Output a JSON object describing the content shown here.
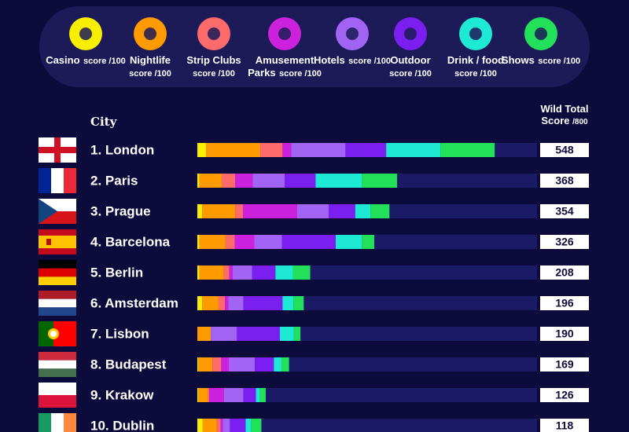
{
  "chart_data": {
    "type": "bar",
    "orientation": "horizontal",
    "stacked": true,
    "category_header": "City",
    "total_header": "Wild Total Score",
    "total_max": "/800",
    "legend_suffix": "score /100",
    "categories": [
      "1. London",
      "2. Paris",
      "3. Prague",
      "4. Barcelona",
      "5. Berlin",
      "6. Amsterdam",
      "7. Lisbon",
      "8. Budapest",
      "9. Krakow",
      "10. Dublin"
    ],
    "totals": [
      548,
      368,
      354,
      326,
      208,
      196,
      190,
      169,
      126,
      118
    ],
    "xlim": [
      0,
      626
    ],
    "series": [
      {
        "name": "Casino",
        "color": "#f7ee00",
        "values": [
          16,
          4,
          9,
          4,
          4,
          9,
          0,
          2,
          2,
          10
        ]
      },
      {
        "name": "Nightlife",
        "color": "#ff9a00",
        "values": [
          100,
          41,
          61,
          48,
          45,
          30,
          25,
          26,
          18,
          26
        ]
      },
      {
        "name": "Strip Clubs",
        "color": "#ff6a6a",
        "values": [
          41,
          25,
          14,
          17,
          10,
          12,
          0,
          16,
          2,
          7
        ]
      },
      {
        "name": "Amusement Parks",
        "color": "#cc22dd",
        "values": [
          16,
          32,
          100,
          36,
          6,
          6,
          0,
          14,
          27,
          4
        ]
      },
      {
        "name": "Hotels",
        "color": "#a264f4",
        "values": [
          100,
          59,
          58,
          51,
          36,
          28,
          48,
          48,
          36,
          13
        ]
      },
      {
        "name": "Outdoor",
        "color": "#7b1ff0",
        "values": [
          75,
          57,
          49,
          99,
          43,
          72,
          79,
          35,
          23,
          29
        ]
      },
      {
        "name": "Drink / food",
        "color": "#1ee9d4",
        "values": [
          100,
          85,
          28,
          48,
          32,
          20,
          26,
          14,
          7,
          10
        ]
      },
      {
        "name": "Shows",
        "color": "#22e05a",
        "values": [
          100,
          65,
          35,
          23,
          32,
          19,
          12,
          14,
          11,
          19
        ]
      }
    ]
  }
}
